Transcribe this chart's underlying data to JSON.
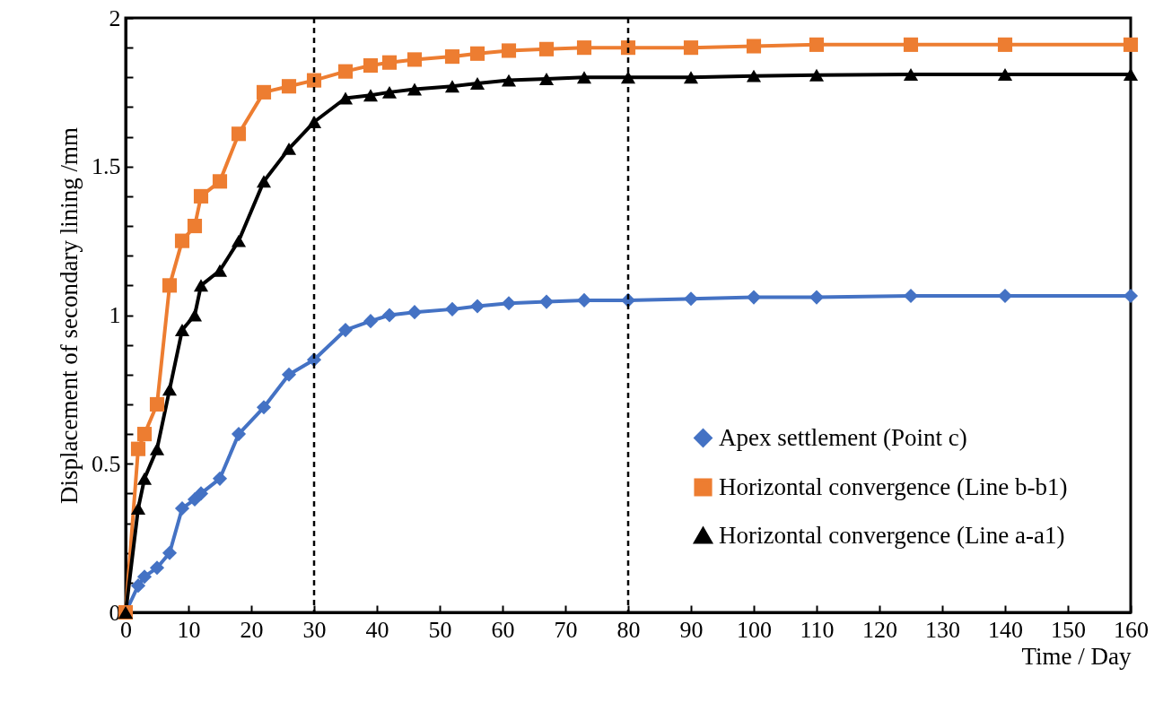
{
  "chart_data": {
    "type": "line",
    "xlabel": "Time / Day",
    "ylabel": "Displacement of secondary  lining /mm",
    "x": [
      0,
      2,
      3,
      5,
      7,
      9,
      11,
      12,
      15,
      18,
      22,
      26,
      30,
      35,
      39,
      42,
      46,
      52,
      56,
      61,
      67,
      73,
      80,
      90,
      100,
      110,
      125,
      140,
      160
    ],
    "series": [
      {
        "name": "Apex settlement (Point c)",
        "color": "#4472c4",
        "marker": "diamond",
        "values": [
          0,
          0.09,
          0.12,
          0.15,
          0.2,
          0.35,
          0.38,
          0.4,
          0.45,
          0.6,
          0.69,
          0.8,
          0.85,
          0.95,
          0.98,
          1.0,
          1.01,
          1.02,
          1.03,
          1.04,
          1.045,
          1.05,
          1.05,
          1.055,
          1.06,
          1.06,
          1.065,
          1.065,
          1.065
        ]
      },
      {
        "name": "Horizontal convergence (Line b-b1)",
        "color": "#ed7d31",
        "marker": "square",
        "values": [
          0,
          0.55,
          0.6,
          0.7,
          1.1,
          1.25,
          1.3,
          1.4,
          1.45,
          1.61,
          1.75,
          1.77,
          1.79,
          1.82,
          1.84,
          1.85,
          1.86,
          1.87,
          1.88,
          1.89,
          1.895,
          1.9,
          1.9,
          1.9,
          1.905,
          1.91,
          1.91,
          1.91,
          1.91
        ]
      },
      {
        "name": "Horizontal convergence (Line a-a1)",
        "color": "#000000",
        "marker": "triangle",
        "values": [
          0,
          0.35,
          0.45,
          0.55,
          0.75,
          0.95,
          1.0,
          1.1,
          1.15,
          1.25,
          1.45,
          1.56,
          1.65,
          1.73,
          1.74,
          1.75,
          1.76,
          1.77,
          1.78,
          1.79,
          1.795,
          1.8,
          1.8,
          1.8,
          1.805,
          1.808,
          1.81,
          1.81,
          1.81
        ]
      }
    ],
    "xlim": [
      0,
      160
    ],
    "xticks": [
      0,
      10,
      20,
      30,
      40,
      50,
      60,
      70,
      80,
      90,
      100,
      110,
      120,
      130,
      140,
      150,
      160
    ],
    "ylim": [
      0,
      2
    ],
    "yticks": [
      0,
      {
        "value": 0.1,
        "label": null
      },
      {
        "value": 0.2,
        "label": null
      },
      {
        "value": 0.3,
        "label": null
      },
      {
        "value": 0.4,
        "label": null
      },
      0.5,
      {
        "value": 0.6,
        "label": null
      },
      {
        "value": 0.7,
        "label": null
      },
      {
        "value": 0.8,
        "label": null
      },
      {
        "value": 0.9,
        "label": null
      },
      1,
      {
        "value": 1.1,
        "label": null
      },
      {
        "value": 1.2,
        "label": null
      },
      {
        "value": 1.3,
        "label": null
      },
      {
        "value": 1.4,
        "label": null
      },
      1.5,
      {
        "value": 1.6,
        "label": null
      },
      {
        "value": 1.7,
        "label": null
      },
      {
        "value": 1.8,
        "label": null
      },
      {
        "value": 1.9,
        "label": null
      },
      2
    ],
    "ref_lines": [
      {
        "axis": "x",
        "value": 30,
        "line_style": "dashed",
        "color": "#000000"
      },
      {
        "axis": "x",
        "value": 80,
        "line_style": "dashed",
        "color": "#000000"
      }
    ],
    "grid": false,
    "legend": "bottom right",
    "line_style": "solid"
  }
}
